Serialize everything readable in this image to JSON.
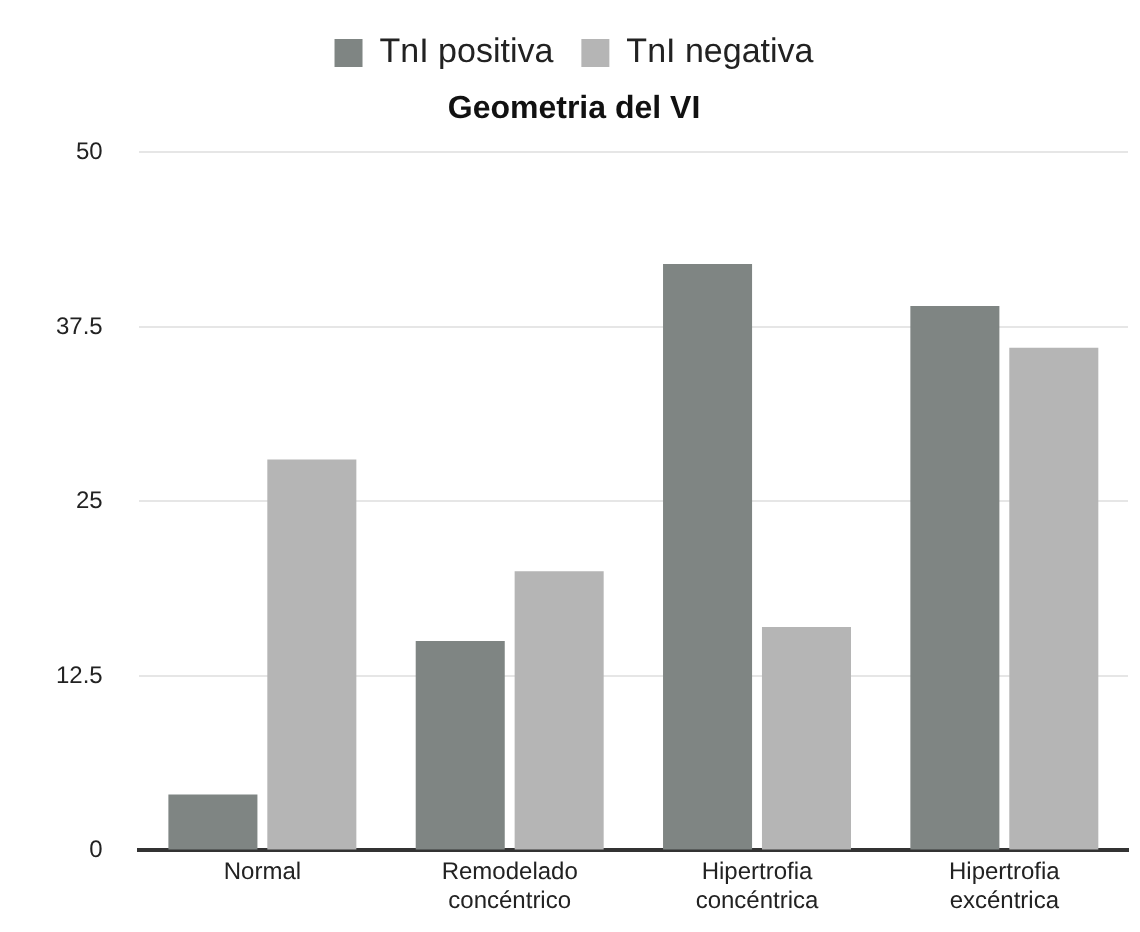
{
  "chart_data": {
    "type": "bar",
    "title": "Geometria del VI",
    "categories": [
      "Normal",
      "Remodelado concéntrico",
      "Hipertrofia concéntrica",
      "Hipertrofia excéntrica"
    ],
    "series": [
      {
        "name": "TnI positiva",
        "color": "#7f8583",
        "values": [
          4,
          15,
          42,
          39
        ]
      },
      {
        "name": "TnI negativa",
        "color": "#b5b5b5",
        "values": [
          28,
          20,
          16,
          36
        ]
      }
    ],
    "ylim": [
      0,
      50
    ],
    "yticks": [
      0,
      12.5,
      25,
      37.5,
      50
    ],
    "grid": "y",
    "legend": "top"
  }
}
